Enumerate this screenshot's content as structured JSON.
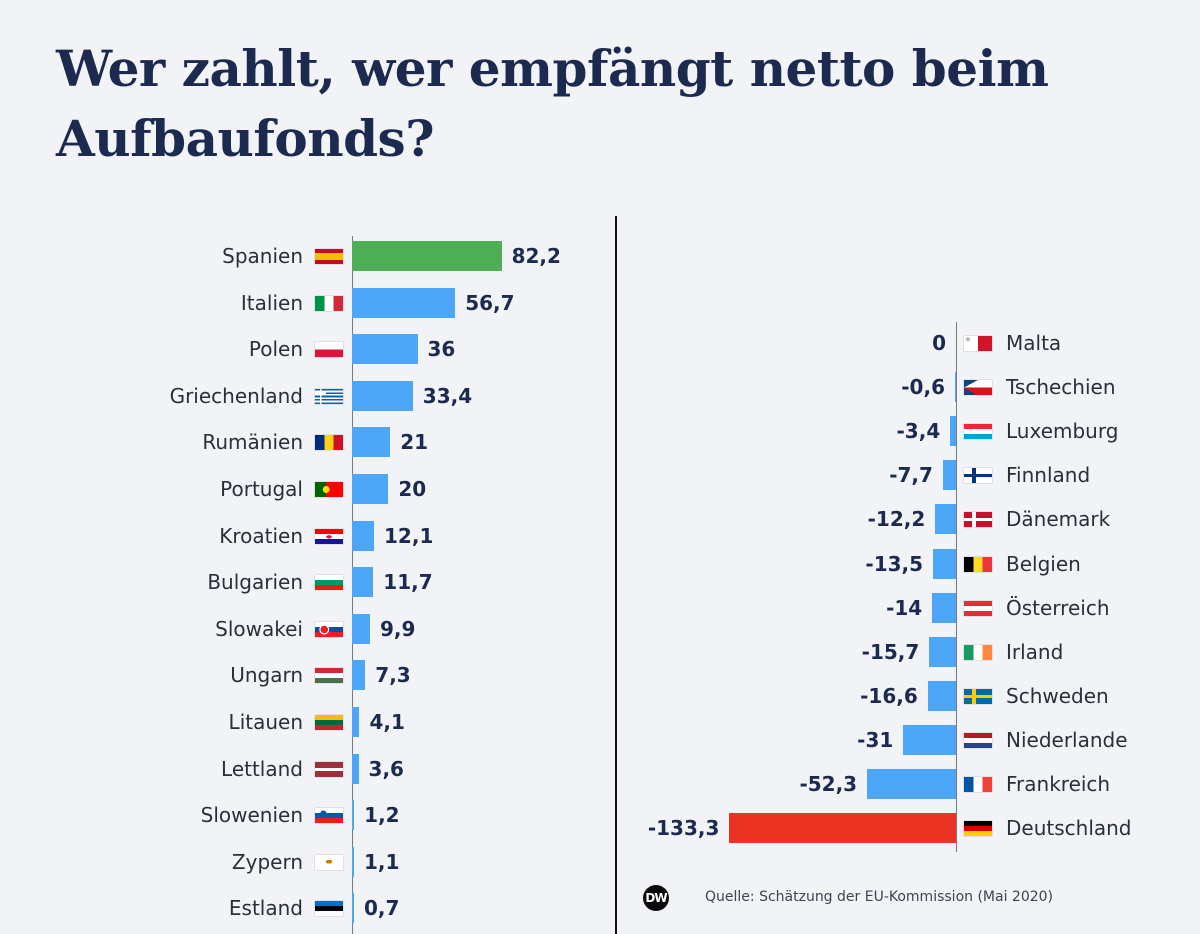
{
  "title_lines": [
    "Wer zahlt, wer empfängt netto beim",
    "Aufbaufonds?"
  ],
  "source": "Quelle: Schätzung der EU-Kommission (Mai 2020)",
  "logo_text": "DW",
  "colors": {
    "highlight_positive": "#4caf56",
    "bar": "#4da6f7",
    "highlight_negative": "#ea3323",
    "value_text": "#1b2a4e",
    "background": "#f2f3f6"
  },
  "chart_data": [
    {
      "type": "bar",
      "orientation": "horizontal",
      "categories": [
        "Spanien",
        "Italien",
        "Polen",
        "Griechenland",
        "Rumänien",
        "Portugal",
        "Kroatien",
        "Bulgarien",
        "Slowakei",
        "Ungarn",
        "Litauen",
        "Lettland",
        "Slowenien",
        "Zypern",
        "Estland"
      ],
      "value_labels": [
        "82,2",
        "56,7",
        "36",
        "33,4",
        "21",
        "20",
        "12,1",
        "11,7",
        "9,9",
        "7,3",
        "4,1",
        "3,6",
        "1,2",
        "1,1",
        "0,7"
      ],
      "values": [
        82.2,
        56.7,
        36,
        33.4,
        21,
        20,
        12.1,
        11.7,
        9.9,
        7.3,
        4.1,
        3.6,
        1.2,
        1.1,
        0.7
      ],
      "flags": [
        "spain-flag-icon",
        "italy-flag-icon",
        "poland-flag-icon",
        "greece-flag-icon",
        "romania-flag-icon",
        "portugal-flag-icon",
        "croatia-flag-icon",
        "bulgaria-flag-icon",
        "slovakia-flag-icon",
        "hungary-flag-icon",
        "lithuania-flag-icon",
        "latvia-flag-icon",
        "slovenia-flag-icon",
        "cyprus-flag-icon",
        "estonia-flag-icon"
      ],
      "highlight": "Spanien"
    },
    {
      "type": "bar",
      "orientation": "horizontal",
      "categories": [
        "Malta",
        "Tschechien",
        "Luxemburg",
        "Finnland",
        "Dänemark",
        "Belgien",
        "Österreich",
        "Irland",
        "Schweden",
        "Niederlande",
        "Frankreich",
        "Deutschland"
      ],
      "value_labels": [
        "0",
        "-0,6",
        "-3,4",
        "-7,7",
        "-12,2",
        "-13,5",
        "-14",
        "-15,7",
        "-16,6",
        "-31",
        "-52,3",
        "-133,3"
      ],
      "values": [
        0,
        -0.6,
        -3.4,
        -7.7,
        -12.2,
        -13.5,
        -14,
        -15.7,
        -16.6,
        -31,
        -52.3,
        -133.3
      ],
      "flags": [
        "malta-flag-icon",
        "czechia-flag-icon",
        "luxembourg-flag-icon",
        "finland-flag-icon",
        "denmark-flag-icon",
        "belgium-flag-icon",
        "austria-flag-icon",
        "ireland-flag-icon",
        "sweden-flag-icon",
        "netherlands-flag-icon",
        "france-flag-icon",
        "germany-flag-icon"
      ],
      "highlight": "Deutschland"
    }
  ]
}
